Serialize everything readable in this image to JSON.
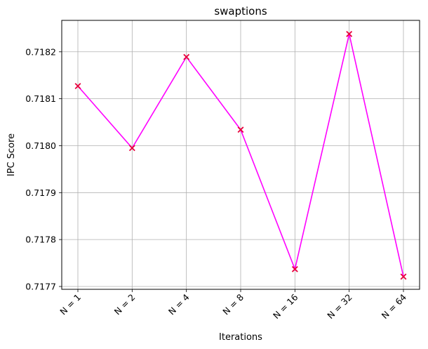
{
  "chart_data": {
    "type": "line",
    "title": "swaptions",
    "xlabel": "Iterations",
    "ylabel": "IPC Score",
    "categories": [
      "N = 1",
      "N = 2",
      "N = 4",
      "N = 8",
      "N = 16",
      "N = 32",
      "N = 64"
    ],
    "series": [
      {
        "values": [
          0.718127,
          0.717995,
          0.718189,
          0.718034,
          0.717737,
          0.718238,
          0.717721
        ],
        "line_color": "#ff00ff",
        "marker": "x",
        "marker_color": "#e8003c"
      }
    ],
    "ylim": [
      0.717694,
      0.718267
    ],
    "yticks": [
      0.7177,
      0.7178,
      0.7179,
      0.718,
      0.7181,
      0.7182
    ],
    "ytick_labels": [
      "0.7177",
      "0.7178",
      "0.7179",
      "0.7180",
      "0.7181",
      "0.7182"
    ],
    "grid": true,
    "xtick_rotation": 45
  }
}
